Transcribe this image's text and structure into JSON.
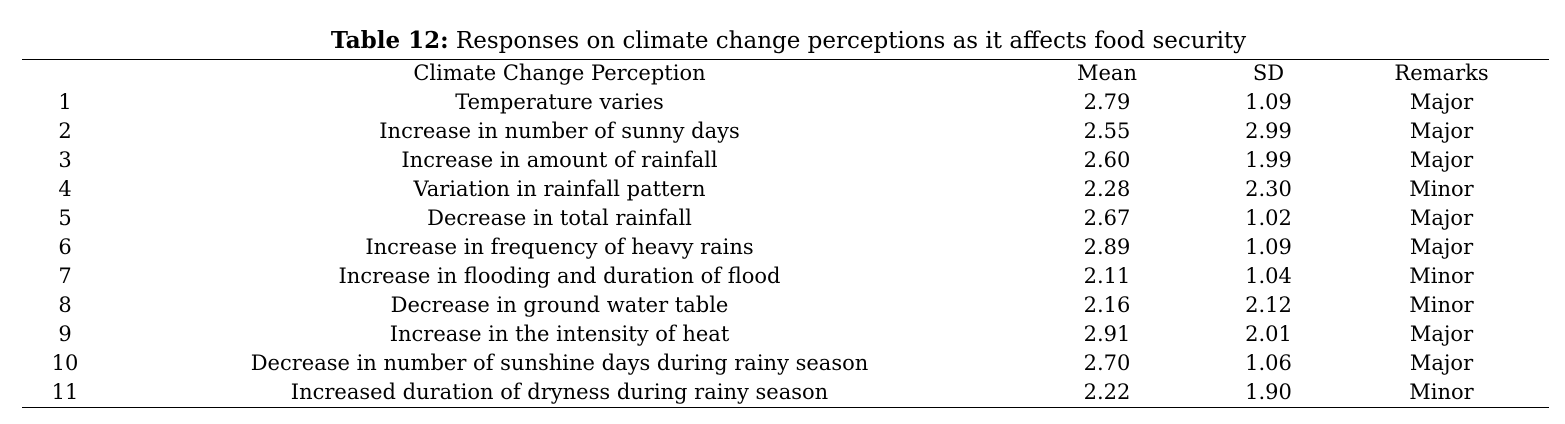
{
  "caption": {
    "label": "Table 12:",
    "text": "Responses on climate change perceptions as it affects food security"
  },
  "table": {
    "headers": [
      "",
      "Climate Change Perception",
      "Mean",
      "SD",
      "Remarks"
    ],
    "rows": [
      {
        "no": "1",
        "perception": "Temperature varies",
        "mean": "2.79",
        "sd": "1.09",
        "remark": "Major"
      },
      {
        "no": "2",
        "perception": "Increase in number of sunny days",
        "mean": "2.55",
        "sd": "2.99",
        "remark": "Major"
      },
      {
        "no": "3",
        "perception": "Increase in amount of rainfall",
        "mean": "2.60",
        "sd": "1.99",
        "remark": "Major"
      },
      {
        "no": "4",
        "perception": "Variation in rainfall pattern",
        "mean": "2.28",
        "sd": "2.30",
        "remark": "Minor"
      },
      {
        "no": "5",
        "perception": "Decrease in total rainfall",
        "mean": "2.67",
        "sd": "1.02",
        "remark": "Major"
      },
      {
        "no": "6",
        "perception": "Increase in frequency of heavy rains",
        "mean": "2.89",
        "sd": "1.09",
        "remark": "Major"
      },
      {
        "no": "7",
        "perception": "Increase in flooding and duration of flood",
        "mean": "2.11",
        "sd": "1.04",
        "remark": "Minor"
      },
      {
        "no": "8",
        "perception": "Decrease in ground water table",
        "mean": "2.16",
        "sd": "2.12",
        "remark": "Minor"
      },
      {
        "no": "9",
        "perception": "Increase in the intensity of heat",
        "mean": "2.91",
        "sd": "2.01",
        "remark": "Major"
      },
      {
        "no": "10",
        "perception": "Decrease in number of sunshine days during rainy season",
        "mean": "2.70",
        "sd": "1.06",
        "remark": "Major"
      },
      {
        "no": "11",
        "perception": "Increased duration of dryness during rainy season",
        "mean": "2.22",
        "sd": "1.90",
        "remark": "Minor"
      }
    ]
  }
}
